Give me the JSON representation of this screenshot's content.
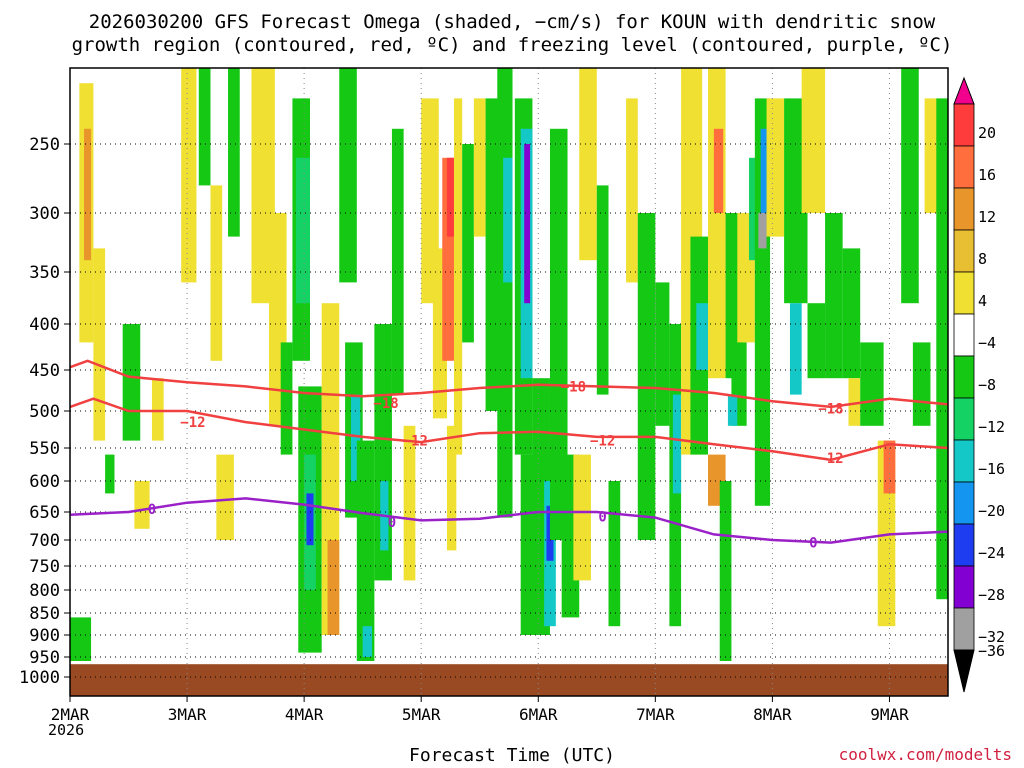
{
  "header": {
    "title_line1": "2026030200 GFS Forecast Omega (shaded, −cm/s) for KOUN with dendritic snow",
    "title_line2": "growth region (contoured, red, ºC) and freezing level (contoured, purple, ºC)"
  },
  "footer": {
    "xlabel": "Forecast Time (UTC)",
    "credit": "coolwx.com/modelts",
    "year": "2026"
  },
  "chart_data": {
    "type": "heatmap",
    "title": "2026030200 GFS Forecast Omega (shaded, −cm/s) for KOUN with dendritic snow growth region (contoured, red, ºC) and freezing level (contoured, purple, ºC)",
    "xlabel": "Forecast Time (UTC)",
    "ylabel": "",
    "x_ticks": [
      "2MAR",
      "3MAR",
      "4MAR",
      "5MAR",
      "6MAR",
      "7MAR",
      "8MAR",
      "9MAR"
    ],
    "x_range_days": [
      0,
      7.5
    ],
    "y_ticks": [
      250,
      300,
      350,
      400,
      450,
      500,
      550,
      600,
      650,
      700,
      750,
      800,
      850,
      900,
      950,
      1000
    ],
    "y_range_hpa": [
      200,
      1000
    ],
    "colorbar": {
      "labels": [
        "20",
        "16",
        "12",
        "8",
        "4",
        "−4",
        "−8",
        "−12",
        "−16",
        "−20",
        "−24",
        "−28",
        "−32",
        "−36"
      ],
      "colors": [
        "#f0008c",
        "#ff3c3c",
        "#ff6e3c",
        "#e8962c",
        "#e8be32",
        "#f0e032",
        "#ffffff",
        "#14c814",
        "#14d264",
        "#14c8c8",
        "#1496f0",
        "#1e3cf0",
        "#8200d2",
        "#a0a0a0",
        "#000000"
      ]
    },
    "series": [
      {
        "name": "-18",
        "color": "#f04040",
        "label": "−18",
        "x": [
          0,
          0.15,
          0.5,
          1.0,
          1.5,
          2.0,
          2.5,
          3.0,
          3.5,
          4.0,
          4.5,
          5.0,
          5.5,
          6.0,
          6.5,
          7.0,
          7.5
        ],
        "y": [
          447,
          440,
          458,
          465,
          470,
          478,
          482,
          478,
          472,
          468,
          470,
          472,
          478,
          488,
          495,
          485,
          492
        ]
      },
      {
        "name": "-12",
        "color": "#f04040",
        "label": "−12",
        "x": [
          0,
          0.2,
          0.5,
          1.0,
          1.5,
          2.0,
          2.5,
          3.0,
          3.5,
          4.0,
          4.5,
          5.0,
          5.5,
          6.0,
          6.5,
          7.0,
          7.5
        ],
        "y": [
          495,
          485,
          500,
          500,
          515,
          525,
          535,
          542,
          530,
          528,
          535,
          535,
          545,
          555,
          568,
          545,
          550
        ]
      },
      {
        "name": "0",
        "color": "#9a20c8",
        "label": "0",
        "x": [
          0,
          0.5,
          1.0,
          1.5,
          2.0,
          2.5,
          3.0,
          3.5,
          4.0,
          4.5,
          5.0,
          5.5,
          6.0,
          6.5,
          7.0,
          7.5
        ],
        "y": [
          655,
          650,
          635,
          628,
          638,
          652,
          665,
          662,
          650,
          650,
          660,
          690,
          700,
          705,
          690,
          685
        ]
      }
    ],
    "contour_labels": [
      {
        "text": "−12",
        "x": 1.05,
        "y": 515,
        "color": "#f04040"
      },
      {
        "text": "−18",
        "x": 2.7,
        "y": 490,
        "color": "#f04040"
      },
      {
        "text": "−12",
        "x": 2.95,
        "y": 540,
        "color": "#f04040"
      },
      {
        "text": "−18",
        "x": 4.3,
        "y": 470,
        "color": "#f04040"
      },
      {
        "text": "−12",
        "x": 4.55,
        "y": 540,
        "color": "#f04040"
      },
      {
        "text": "−18",
        "x": 6.5,
        "y": 497,
        "color": "#f04040"
      },
      {
        "text": "−12",
        "x": 6.5,
        "y": 565,
        "color": "#f04040"
      },
      {
        "text": "0",
        "x": 0.7,
        "y": 645,
        "color": "#9a20c8"
      },
      {
        "text": "0",
        "x": 2.75,
        "y": 668,
        "color": "#9a20c8"
      },
      {
        "text": "0",
        "x": 4.55,
        "y": 658,
        "color": "#9a20c8"
      },
      {
        "text": "0",
        "x": 6.35,
        "y": 705,
        "color": "#9a20c8"
      }
    ],
    "ground": {
      "color": "#9a4a22",
      "top_hpa": 968
    },
    "cells": [
      {
        "x0": 0.0,
        "x1": 0.18,
        "y0": 860,
        "y1": 960,
        "v": -6
      },
      {
        "x0": 0.08,
        "x1": 0.2,
        "y0": 210,
        "y1": 420,
        "v": 6
      },
      {
        "x0": 0.12,
        "x1": 0.18,
        "y0": 240,
        "y1": 340,
        "v": 10
      },
      {
        "x0": 0.2,
        "x1": 0.3,
        "y0": 330,
        "y1": 540,
        "v": 5
      },
      {
        "x0": 0.3,
        "x1": 0.38,
        "y0": 560,
        "y1": 620,
        "v": -6
      },
      {
        "x0": 0.45,
        "x1": 0.6,
        "y0": 400,
        "y1": 540,
        "v": -6
      },
      {
        "x0": 0.55,
        "x1": 0.68,
        "y0": 600,
        "y1": 680,
        "v": 6
      },
      {
        "x0": 0.7,
        "x1": 0.8,
        "y0": 460,
        "y1": 540,
        "v": 5
      },
      {
        "x0": 0.95,
        "x1": 1.08,
        "y0": 200,
        "y1": 360,
        "v": 6
      },
      {
        "x0": 1.1,
        "x1": 1.2,
        "y0": 200,
        "y1": 280,
        "v": -6
      },
      {
        "x0": 1.2,
        "x1": 1.3,
        "y0": 280,
        "y1": 440,
        "v": 5
      },
      {
        "x0": 1.25,
        "x1": 1.4,
        "y0": 560,
        "y1": 700,
        "v": 5
      },
      {
        "x0": 1.35,
        "x1": 1.45,
        "y0": 200,
        "y1": 320,
        "v": -6
      },
      {
        "x0": 1.55,
        "x1": 1.75,
        "y0": 200,
        "y1": 380,
        "v": 6
      },
      {
        "x0": 1.7,
        "x1": 1.85,
        "y0": 300,
        "y1": 520,
        "v": 5
      },
      {
        "x0": 1.8,
        "x1": 1.9,
        "y0": 420,
        "y1": 560,
        "v": -6
      },
      {
        "x0": 1.9,
        "x1": 2.05,
        "y0": 220,
        "y1": 440,
        "v": -6
      },
      {
        "x0": 1.93,
        "x1": 2.05,
        "y0": 260,
        "y1": 380,
        "v": -10
      },
      {
        "x0": 1.95,
        "x1": 2.15,
        "y0": 470,
        "y1": 940,
        "v": -6
      },
      {
        "x0": 2.0,
        "x1": 2.1,
        "y0": 560,
        "y1": 800,
        "v": -10
      },
      {
        "x0": 2.02,
        "x1": 2.08,
        "y0": 620,
        "y1": 710,
        "v": -20
      },
      {
        "x0": 2.15,
        "x1": 2.3,
        "y0": 380,
        "y1": 900,
        "v": 5
      },
      {
        "x0": 2.2,
        "x1": 2.3,
        "y0": 700,
        "y1": 900,
        "v": 10
      },
      {
        "x0": 2.3,
        "x1": 2.45,
        "y0": 200,
        "y1": 360,
        "v": -6
      },
      {
        "x0": 2.35,
        "x1": 2.5,
        "y0": 420,
        "y1": 660,
        "v": -6
      },
      {
        "x0": 2.4,
        "x1": 2.48,
        "y0": 480,
        "y1": 600,
        "v": -14
      },
      {
        "x0": 2.45,
        "x1": 2.6,
        "y0": 540,
        "y1": 960,
        "v": -6
      },
      {
        "x0": 2.5,
        "x1": 2.58,
        "y0": 880,
        "y1": 950,
        "v": -14
      },
      {
        "x0": 2.6,
        "x1": 2.75,
        "y0": 400,
        "y1": 780,
        "v": -6
      },
      {
        "x0": 2.65,
        "x1": 2.72,
        "y0": 600,
        "y1": 720,
        "v": -14
      },
      {
        "x0": 2.75,
        "x1": 2.85,
        "y0": 240,
        "y1": 480,
        "v": -6
      },
      {
        "x0": 2.85,
        "x1": 2.95,
        "y0": 520,
        "y1": 780,
        "v": 5
      },
      {
        "x0": 3.0,
        "x1": 3.15,
        "y0": 220,
        "y1": 380,
        "v": 6
      },
      {
        "x0": 3.1,
        "x1": 3.22,
        "y0": 330,
        "y1": 510,
        "v": 6
      },
      {
        "x0": 3.18,
        "x1": 3.32,
        "y0": 260,
        "y1": 440,
        "v": 12
      },
      {
        "x0": 3.22,
        "x1": 3.28,
        "y0": 260,
        "y1": 320,
        "v": 18
      },
      {
        "x0": 3.28,
        "x1": 3.35,
        "y0": 220,
        "y1": 560,
        "v": 6
      },
      {
        "x0": 3.22,
        "x1": 3.3,
        "y0": 520,
        "y1": 720,
        "v": 6
      },
      {
        "x0": 3.35,
        "x1": 3.45,
        "y0": 250,
        "y1": 420,
        "v": -6
      },
      {
        "x0": 3.45,
        "x1": 3.55,
        "y0": 220,
        "y1": 320,
        "v": 6
      },
      {
        "x0": 3.55,
        "x1": 3.7,
        "y0": 220,
        "y1": 500,
        "v": -6
      },
      {
        "x0": 3.65,
        "x1": 3.78,
        "y0": 200,
        "y1": 660,
        "v": -6
      },
      {
        "x0": 3.7,
        "x1": 3.78,
        "y0": 260,
        "y1": 360,
        "v": -12
      },
      {
        "x0": 3.8,
        "x1": 3.95,
        "y0": 220,
        "y1": 560,
        "v": -6
      },
      {
        "x0": 3.85,
        "x1": 3.95,
        "y0": 240,
        "y1": 460,
        "v": -14
      },
      {
        "x0": 3.88,
        "x1": 3.93,
        "y0": 250,
        "y1": 380,
        "v": -24
      },
      {
        "x0": 3.95,
        "x1": 4.1,
        "y0": 460,
        "y1": 660,
        "v": -6
      },
      {
        "x0": 3.85,
        "x1": 4.1,
        "y0": 560,
        "y1": 900,
        "v": -6
      },
      {
        "x0": 4.05,
        "x1": 4.15,
        "y0": 600,
        "y1": 880,
        "v": -14
      },
      {
        "x0": 4.07,
        "x1": 4.13,
        "y0": 640,
        "y1": 740,
        "v": -22
      },
      {
        "x0": 4.1,
        "x1": 4.25,
        "y0": 240,
        "y1": 700,
        "v": -6
      },
      {
        "x0": 4.2,
        "x1": 4.35,
        "y0": 560,
        "y1": 860,
        "v": -6
      },
      {
        "x0": 4.35,
        "x1": 4.5,
        "y0": 200,
        "y1": 340,
        "v": 6
      },
      {
        "x0": 4.3,
        "x1": 4.45,
        "y0": 560,
        "y1": 780,
        "v": 5
      },
      {
        "x0": 4.5,
        "x1": 4.6,
        "y0": 280,
        "y1": 480,
        "v": -6
      },
      {
        "x0": 4.6,
        "x1": 4.7,
        "y0": 600,
        "y1": 880,
        "v": -6
      },
      {
        "x0": 4.75,
        "x1": 4.85,
        "y0": 220,
        "y1": 360,
        "v": 5
      },
      {
        "x0": 4.85,
        "x1": 5.0,
        "y0": 300,
        "y1": 700,
        "v": -6
      },
      {
        "x0": 5.0,
        "x1": 5.12,
        "y0": 360,
        "y1": 520,
        "v": -6
      },
      {
        "x0": 5.12,
        "x1": 5.22,
        "y0": 400,
        "y1": 880,
        "v": -6
      },
      {
        "x0": 5.15,
        "x1": 5.22,
        "y0": 480,
        "y1": 620,
        "v": -12
      },
      {
        "x0": 5.22,
        "x1": 5.4,
        "y0": 200,
        "y1": 560,
        "v": 6
      },
      {
        "x0": 5.3,
        "x1": 5.45,
        "y0": 320,
        "y1": 560,
        "v": -6
      },
      {
        "x0": 5.35,
        "x1": 5.45,
        "y0": 380,
        "y1": 450,
        "v": -12
      },
      {
        "x0": 5.45,
        "x1": 5.6,
        "y0": 560,
        "y1": 640,
        "v": 10
      },
      {
        "x0": 5.45,
        "x1": 5.6,
        "y0": 200,
        "y1": 460,
        "v": 6
      },
      {
        "x0": 5.5,
        "x1": 5.58,
        "y0": 240,
        "y1": 300,
        "v": 14
      },
      {
        "x0": 5.55,
        "x1": 5.65,
        "y0": 600,
        "y1": 960,
        "v": -6
      },
      {
        "x0": 5.6,
        "x1": 5.75,
        "y0": 300,
        "y1": 460,
        "v": -6
      },
      {
        "x0": 5.65,
        "x1": 5.78,
        "y0": 420,
        "y1": 520,
        "v": -6
      },
      {
        "x0": 5.62,
        "x1": 5.7,
        "y0": 480,
        "y1": 520,
        "v": -14
      },
      {
        "x0": 5.7,
        "x1": 5.85,
        "y0": 300,
        "y1": 420,
        "v": 6
      },
      {
        "x0": 5.8,
        "x1": 5.95,
        "y0": 260,
        "y1": 340,
        "v": -8
      },
      {
        "x0": 5.85,
        "x1": 5.98,
        "y0": 220,
        "y1": 640,
        "v": -6
      },
      {
        "x0": 5.9,
        "x1": 5.95,
        "y0": 240,
        "y1": 300,
        "v": -18
      },
      {
        "x0": 5.88,
        "x1": 5.95,
        "y0": 300,
        "y1": 330,
        "v": -28
      },
      {
        "x0": 5.95,
        "x1": 6.1,
        "y0": 220,
        "y1": 320,
        "v": 6
      },
      {
        "x0": 6.1,
        "x1": 6.3,
        "y0": 220,
        "y1": 380,
        "v": -6
      },
      {
        "x0": 6.15,
        "x1": 6.25,
        "y0": 380,
        "y1": 480,
        "v": -14
      },
      {
        "x0": 6.25,
        "x1": 6.45,
        "y0": 200,
        "y1": 300,
        "v": 6
      },
      {
        "x0": 6.3,
        "x1": 6.45,
        "y0": 380,
        "y1": 460,
        "v": -6
      },
      {
        "x0": 6.45,
        "x1": 6.6,
        "y0": 300,
        "y1": 460,
        "v": -6
      },
      {
        "x0": 6.6,
        "x1": 6.75,
        "y0": 330,
        "y1": 460,
        "v": -6
      },
      {
        "x0": 6.65,
        "x1": 6.75,
        "y0": 460,
        "y1": 520,
        "v": 6
      },
      {
        "x0": 6.75,
        "x1": 6.95,
        "y0": 420,
        "y1": 520,
        "v": -6
      },
      {
        "x0": 6.9,
        "x1": 7.05,
        "y0": 540,
        "y1": 880,
        "v": 6
      },
      {
        "x0": 6.95,
        "x1": 7.05,
        "y0": 540,
        "y1": 620,
        "v": 12
      },
      {
        "x0": 7.1,
        "x1": 7.25,
        "y0": 200,
        "y1": 380,
        "v": -6
      },
      {
        "x0": 7.2,
        "x1": 7.35,
        "y0": 420,
        "y1": 520,
        "v": -6
      },
      {
        "x0": 7.3,
        "x1": 7.45,
        "y0": 220,
        "y1": 300,
        "v": 6
      },
      {
        "x0": 7.4,
        "x1": 7.5,
        "y0": 220,
        "y1": 820,
        "v": -6
      }
    ]
  }
}
